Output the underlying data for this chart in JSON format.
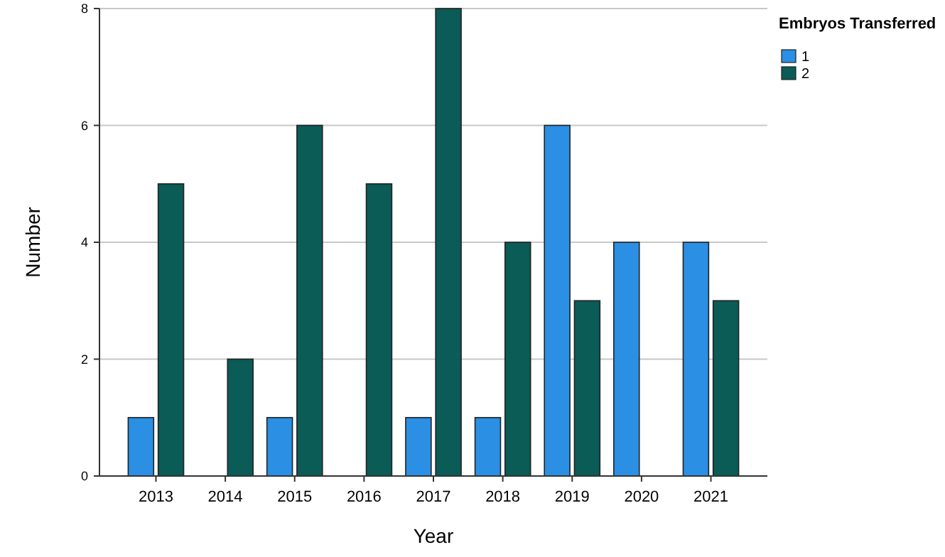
{
  "chart_data": {
    "type": "bar",
    "xlabel": "Year",
    "ylabel": "Number",
    "legend_title": "Embryos Transferred",
    "categories": [
      "2013",
      "2014",
      "2015",
      "2016",
      "2017",
      "2018",
      "2019",
      "2020",
      "2021"
    ],
    "series": [
      {
        "name": "1",
        "color": "#2b8fe3",
        "values": [
          1,
          0,
          1,
          0,
          1,
          1,
          6,
          4,
          4
        ]
      },
      {
        "name": "2",
        "color": "#0b5b57",
        "values": [
          5,
          2,
          6,
          5,
          8,
          4,
          3,
          0,
          3
        ]
      }
    ],
    "ylim": [
      0,
      8
    ],
    "yticks": [
      0,
      2,
      4,
      6,
      8
    ],
    "grid": "y",
    "legend": "top right"
  }
}
